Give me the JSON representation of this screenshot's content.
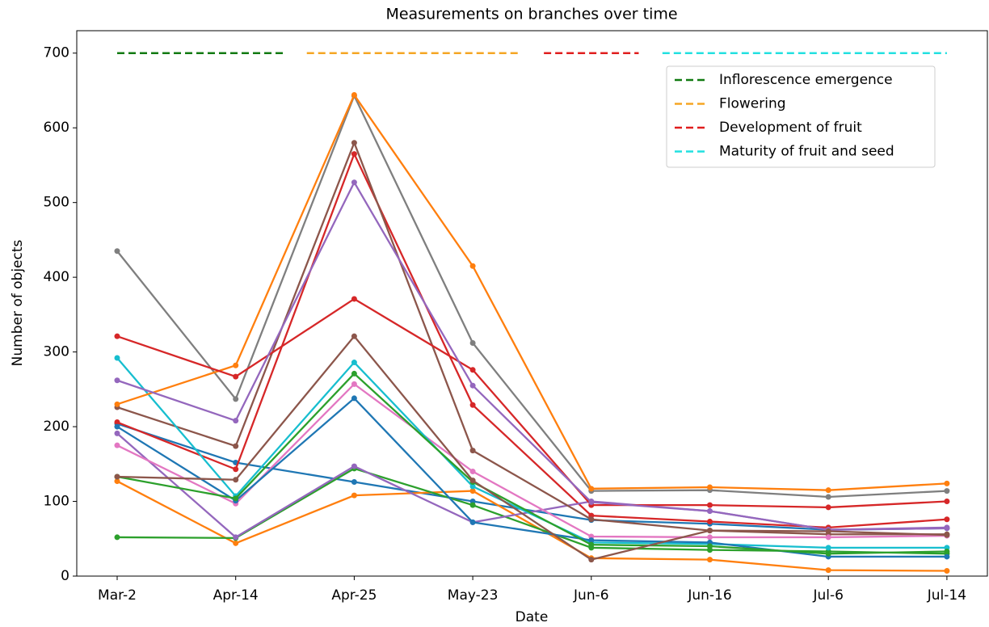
{
  "chart_data": {
    "type": "line",
    "title": "Measurements on branches over time",
    "xlabel": "Date",
    "ylabel": "Number of objects",
    "categories": [
      "Mar-2",
      "Apr-14",
      "Apr-25",
      "May-23",
      "Jun-6",
      "Jun-16",
      "Jul-6",
      "Jul-14"
    ],
    "ylim": [
      0,
      730
    ],
    "yticks": [
      0,
      100,
      200,
      300,
      400,
      500,
      600,
      700
    ],
    "legend": "upper right",
    "phases": [
      {
        "name": "Inflorescence emergence",
        "color": "#117a11",
        "x": [
          0,
          1.4
        ],
        "value": 700
      },
      {
        "name": "Flowering",
        "color": "#f5a623",
        "x": [
          1.6,
          3.4
        ],
        "value": 700
      },
      {
        "name": "Development of fruit",
        "color": "#e01e1e",
        "x": [
          3.6,
          4.4
        ],
        "value": 700
      },
      {
        "name": "Maturity of fruit and seed",
        "color": "#22e0e0",
        "x": [
          4.6,
          7.0
        ],
        "value": 700
      }
    ],
    "series": [
      {
        "color": "#1f77b4",
        "values": [
          204,
          152,
          126,
          100,
          75,
          70,
          62,
          64
        ]
      },
      {
        "color": "#ff7f0e",
        "values": [
          127,
          44,
          108,
          114,
          24,
          22,
          8,
          7
        ]
      },
      {
        "color": "#2ca02c",
        "values": [
          52,
          51,
          144,
          95,
          38,
          35,
          33,
          30
        ]
      },
      {
        "color": "#d62728",
        "values": [
          206,
          143,
          565,
          229,
          81,
          73,
          65,
          76
        ]
      },
      {
        "color": "#9467bd",
        "values": [
          191,
          52,
          147,
          72,
          100,
          87,
          62,
          64
        ]
      },
      {
        "color": "#8c564b",
        "values": [
          226,
          174,
          580,
          168,
          76,
          61,
          56,
          56
        ]
      },
      {
        "color": "#e377c2",
        "values": [
          175,
          97,
          257,
          140,
          53,
          52,
          52,
          54
        ]
      },
      {
        "color": "#7f7f7f",
        "values": [
          435,
          237,
          643,
          312,
          114,
          115,
          106,
          114
        ]
      },
      {
        "color": "#17becf",
        "values": [
          292,
          107,
          286,
          120,
          45,
          43,
          38,
          38
        ]
      },
      {
        "color": "#1f77b4",
        "values": [
          200,
          101,
          238,
          72,
          48,
          45,
          26,
          26
        ]
      },
      {
        "color": "#ff7f0e",
        "values": [
          230,
          282,
          644,
          415,
          117,
          119,
          115,
          124
        ]
      },
      {
        "color": "#2ca02c",
        "values": [
          133,
          104,
          271,
          126,
          42,
          40,
          30,
          33
        ]
      },
      {
        "color": "#d62728",
        "values": [
          321,
          267,
          371,
          276,
          95,
          95,
          92,
          100
        ]
      },
      {
        "color": "#9467bd",
        "values": [
          262,
          208,
          527,
          255,
          99,
          87,
          62,
          65
        ]
      },
      {
        "color": "#8c564b",
        "values": [
          133,
          129,
          321,
          128,
          22,
          61,
          60,
          55
        ]
      }
    ]
  }
}
